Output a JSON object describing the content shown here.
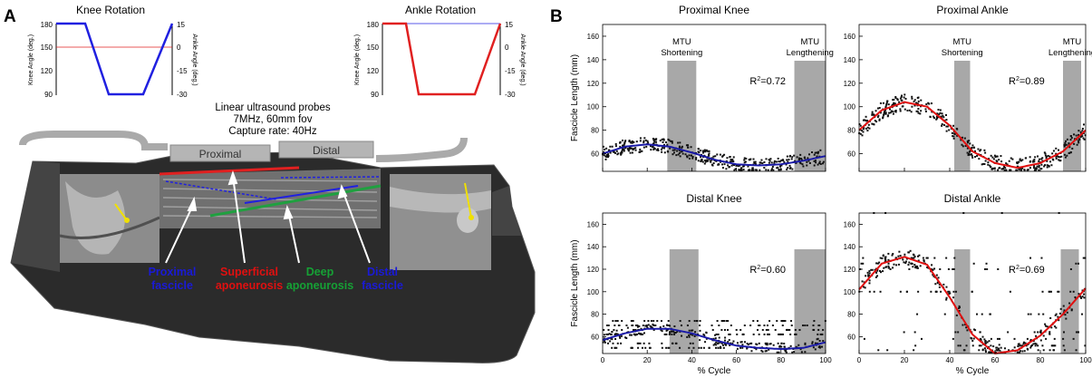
{
  "panel_a": {
    "label": "A",
    "knee_rotation": {
      "title": "Knee Rotation",
      "left_axis_label": "Knee Angle (deg.)",
      "right_axis_label": "Ankle Angle (deg.)",
      "left_ticks": [
        "180",
        "150",
        "120",
        "90"
      ],
      "right_ticks": [
        "15",
        "0",
        "-15",
        "-30"
      ]
    },
    "ankle_rotation": {
      "title": "Ankle Rotation",
      "left_axis_label": "Knee Angle (deg.)",
      "right_axis_label": "Ankle Angle (deg.)",
      "left_ticks": [
        "180",
        "150",
        "120",
        "90"
      ],
      "right_ticks": [
        "15",
        "0",
        "-15",
        "-30"
      ]
    },
    "probe_info": [
      "Linear ultrasound probes",
      "7MHz, 60mm fov",
      "Capture rate: 40Hz"
    ],
    "probes": [
      "Proximal",
      "Distal"
    ],
    "annotations": [
      {
        "line1": "Proximal",
        "line2": "fascicle",
        "color": "#1a1ad6"
      },
      {
        "line1": "Superficial",
        "line2": "aponeurosis",
        "color": "#e01010"
      },
      {
        "line1": "Deep",
        "line2": "aponeurosis",
        "color": "#16a035"
      },
      {
        "line1": "Distal",
        "line2": "fascicle",
        "color": "#1a1ad6"
      }
    ],
    "colors": {
      "blue": "#2020e0",
      "red": "#e02020",
      "green": "#20a040",
      "yellow": "#f0e000"
    }
  },
  "panel_b": {
    "label": "B",
    "ylabel": "Fascicle Length (mm)",
    "xlabel": "% Cycle",
    "y_ticks": [
      "60",
      "80",
      "100",
      "120",
      "140",
      "160"
    ],
    "x_ticks": [
      "0",
      "20",
      "40",
      "60",
      "80",
      "100"
    ],
    "band_labels": [
      "MTU",
      "Shortening",
      "MTU",
      "Lengthening"
    ]
  },
  "chart_data": [
    {
      "type": "scatter",
      "title": "Proximal Knee",
      "xlabel": "",
      "ylabel": "Fascicle Length (mm)",
      "xlim": [
        0,
        100
      ],
      "ylim": [
        45,
        170
      ],
      "shaded_regions": [
        [
          29,
          42
        ],
        [
          86,
          100
        ]
      ],
      "r2_label": "R",
      "r2_sup": "2",
      "r2_value": "=0.72",
      "fit_color": "#1a1aa8",
      "fit_x": [
        0,
        10,
        20,
        30,
        40,
        50,
        60,
        70,
        80,
        90,
        100
      ],
      "fit_y": [
        60,
        66,
        68,
        66,
        61,
        55,
        51,
        50,
        51,
        54,
        58
      ],
      "scatter_spread": 5,
      "scatter_level_sets": []
    },
    {
      "type": "scatter",
      "title": "Proximal Ankle",
      "xlabel": "",
      "ylabel": "",
      "xlim": [
        0,
        100
      ],
      "ylim": [
        45,
        170
      ],
      "shaded_regions": [
        [
          42,
          49
        ],
        [
          90,
          98
        ]
      ],
      "r2_label": "R",
      "r2_sup": "2",
      "r2_value": "=0.89",
      "fit_color": "#e01010",
      "fit_x": [
        0,
        10,
        20,
        30,
        40,
        50,
        60,
        70,
        80,
        90,
        100
      ],
      "fit_y": [
        80,
        97,
        104,
        100,
        84,
        62,
        52,
        48,
        52,
        62,
        80
      ],
      "scatter_spread": 6,
      "scatter_level_sets": []
    },
    {
      "type": "scatter",
      "title": "Distal Knee",
      "xlabel": "% Cycle",
      "ylabel": "Fascicle Length (mm)",
      "xlim": [
        0,
        100
      ],
      "ylim": [
        45,
        170
      ],
      "shaded_regions": [
        [
          30,
          43
        ],
        [
          86,
          100
        ]
      ],
      "r2_label": "R",
      "r2_sup": "2",
      "r2_value": "=0.60",
      "fit_color": "#1a1aa8",
      "fit_x": [
        0,
        10,
        20,
        30,
        40,
        50,
        60,
        70,
        80,
        90,
        100
      ],
      "fit_y": [
        57,
        63,
        67,
        67,
        63,
        57,
        52,
        50,
        49,
        50,
        55
      ],
      "scatter_spread": 4,
      "scatter_level_sets": [
        62,
        66,
        70,
        74,
        50,
        54
      ]
    },
    {
      "type": "scatter",
      "title": "Distal Ankle",
      "xlabel": "% Cycle",
      "ylabel": "",
      "xlim": [
        0,
        100
      ],
      "ylim": [
        45,
        170
      ],
      "shaded_regions": [
        [
          42,
          49
        ],
        [
          89,
          97
        ]
      ],
      "r2_label": "R",
      "r2_sup": "2",
      "r2_value": "=0.69",
      "fit_color": "#e01010",
      "fit_x": [
        0,
        10,
        20,
        30,
        40,
        50,
        60,
        70,
        80,
        90,
        100
      ],
      "fit_y": [
        102,
        125,
        131,
        124,
        95,
        62,
        45,
        48,
        61,
        80,
        103
      ],
      "scatter_spread": 6,
      "scatter_level_sets": [
        170,
        130,
        125,
        120,
        100,
        80,
        64,
        58,
        52,
        48
      ]
    }
  ]
}
